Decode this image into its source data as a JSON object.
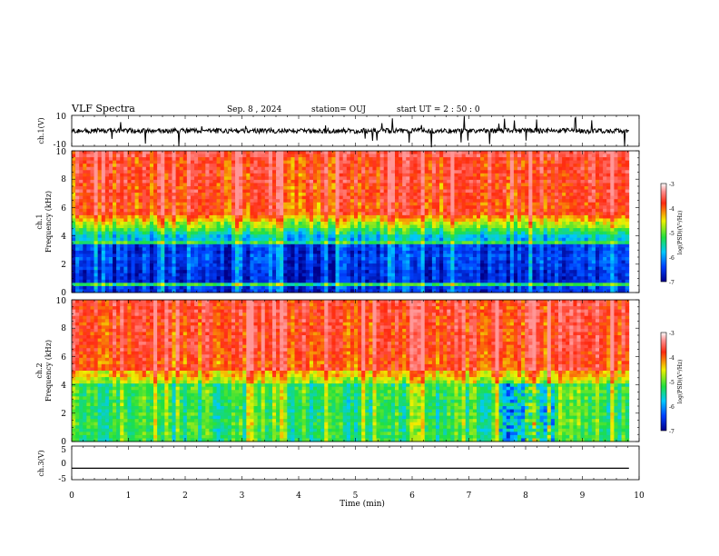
{
  "header": {
    "title": "VLF Spectra",
    "date": "Sep. 8 , 2024",
    "station": "station= OUJ",
    "start": "start UT =  2 : 50 : 0"
  },
  "colors": {
    "low": "#0000aa",
    "mid_low": "#00c8ff",
    "mid": "#20e040",
    "mid_high": "#f0f000",
    "high": "#ff2a10"
  },
  "chart_data": [
    {
      "type": "line",
      "panel": "waveform-ch1",
      "ylabel": "ch.1(V)",
      "ylim": [
        -10,
        10
      ],
      "yticks": [
        "10",
        "-10"
      ],
      "baseline": 0,
      "xlim": [
        0,
        10
      ]
    },
    {
      "type": "heatmap",
      "panel": "spectrogram-ch1",
      "ylabel": "ch.1\nFrequency (kHz)",
      "ylim": [
        0,
        10
      ],
      "xlim": [
        0,
        10
      ],
      "yticks": [
        "0",
        "2",
        "4",
        "6",
        "8",
        "10"
      ],
      "data_end_min": 9.82,
      "transition_khz": 4.2,
      "colorbar": {
        "label": "log(PSD)(V²/Hz)",
        "ticks": [
          "-3",
          "-4",
          "-5",
          "-6",
          "-7"
        ]
      }
    },
    {
      "type": "heatmap",
      "panel": "spectrogram-ch2",
      "ylabel": "ch.2\nFrequency (kHz)",
      "ylim": [
        0,
        10
      ],
      "xlim": [
        0,
        10
      ],
      "yticks": [
        "0",
        "2",
        "4",
        "6",
        "8",
        "10"
      ],
      "data_end_min": 9.82,
      "transition_khz": 4.0,
      "event": {
        "t_start_min": 7.55,
        "t_end_min": 8.5,
        "f_max_khz": 4.2
      },
      "colorbar": {
        "label": "log(PSD)(V²/Hz)",
        "ticks": [
          "-3",
          "-4",
          "-5",
          "-6",
          "-7"
        ]
      }
    },
    {
      "type": "line",
      "panel": "waveform-ch3",
      "ylabel": "ch.3(V)",
      "ylim": [
        -5,
        5
      ],
      "yticks": [
        "5",
        "0",
        "-5"
      ],
      "baseline": -1.6,
      "xlim": [
        0,
        10
      ],
      "xlabel": "Time (min)",
      "xticks": [
        "0",
        "1",
        "2",
        "3",
        "4",
        "5",
        "6",
        "7",
        "8",
        "9",
        "10"
      ]
    }
  ]
}
